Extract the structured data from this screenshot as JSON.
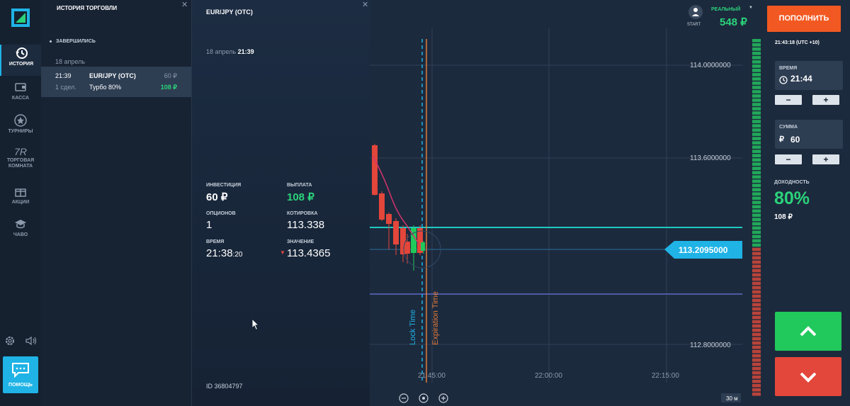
{
  "nav": {
    "items": [
      {
        "label": "ИСТОРИЯ",
        "icon": "history-icon"
      },
      {
        "label": "КАССА",
        "icon": "wallet-icon"
      },
      {
        "label": "ТУРНИРЫ",
        "icon": "star-icon"
      },
      {
        "label": "ТОРГОВАЯ КОМНАТА",
        "icon": "trading-room-icon"
      },
      {
        "label": "АКЦИИ",
        "icon": "gift-icon"
      },
      {
        "label": "ЧАВО",
        "icon": "graduation-cap-icon"
      }
    ],
    "help_label": "ПОМОЩЬ",
    "trading_room_glyph": "7R"
  },
  "history": {
    "title": "ИСТОРИЯ ТОРГОВЛИ",
    "section": "ЗАВЕРШИЛИСЬ",
    "date": "18 апрель",
    "trade": {
      "time": "21:39",
      "deals": "1 сдел.",
      "asset": "EUR/JPY (OTC)",
      "mode": "Турбо 80%",
      "invest": "60 ₽",
      "payout": "108 ₽"
    }
  },
  "detail": {
    "asset": "EUR/JPY (OTC)",
    "date": "18 апрель",
    "time": "21:39",
    "invest_label": "ИНВЕСТИЦИЯ",
    "invest_value": "60 ₽",
    "payout_label": "ВЫПЛАТА",
    "payout_value": "108 ₽",
    "options_label": "ОПЦИОНОВ",
    "options_value": "1",
    "quote_label": "КОТИРОВКА",
    "quote_value": "113.338",
    "time_label": "ВРЕМЯ",
    "time_value": "21:38",
    "time_seconds": ":20",
    "value_label": "ЗНАЧЕНИЕ",
    "value_value": "113.4365",
    "id": "ID 36804797"
  },
  "chart": {
    "y_labels": [
      "114.0000000",
      "113.6000000",
      "112.8000000"
    ],
    "x_labels": [
      "21:45:00",
      "22:00:00",
      "22:15:00"
    ],
    "current_price": "113.2095000",
    "lock_time_label": "Lock Time",
    "expiration_label": "Expiration Time",
    "timeframe": "30 м"
  },
  "account": {
    "mode": "РЕАЛЬНЫЙ",
    "balance": "548 ₽",
    "level": "START",
    "deposit_label": "ПОПОЛНИТЬ",
    "clock": "21:43:18 (UTC +10)"
  },
  "trade_form": {
    "time_label": "ВРЕМЯ",
    "time_value": "21:44",
    "amount_label": "СУММА",
    "amount_currency": "₽",
    "amount_value": "60",
    "payout_label": "ДОХОДНОСТЬ",
    "payout_pct": "80%",
    "payout_amount": "108 ₽",
    "minus": "−",
    "plus": "+"
  },
  "colors": {
    "accent": "#1fb3e6",
    "green": "#2bd27a",
    "red": "#e3463a",
    "orange": "#f25922"
  }
}
